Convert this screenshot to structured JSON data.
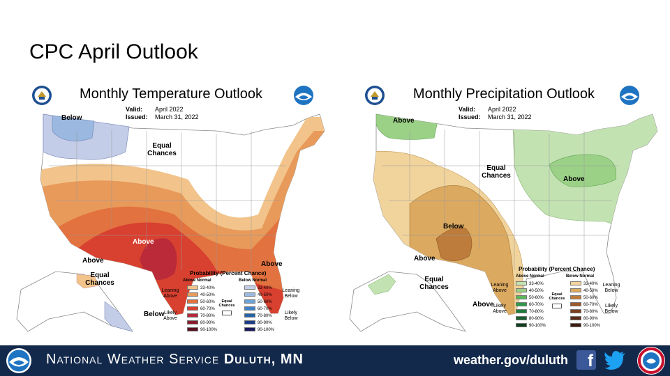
{
  "slide": {
    "title": "CPC April Outlook"
  },
  "temperature": {
    "title": "Monthly Temperature Outlook",
    "valid_label": "Valid:",
    "valid_value": "April 2022",
    "issued_label": "Issued:",
    "issued_value": "March 31, 2022",
    "labels": {
      "below_nw": "Below",
      "equal_chances": "Equal Chances",
      "above_texas": "Above",
      "above_florida": "Above",
      "above_alaska": "Above",
      "equal_chances_alaska": "Equal Chances",
      "below_alaska": "Below"
    },
    "legend": {
      "title": "Probability (Percent Chance)",
      "above_head": "Above Normal",
      "below_head": "Below Normal",
      "leaning_above": "Leaning Above",
      "likely_above": "Likely Above",
      "leaning_below": "Leaning Below",
      "likely_below": "Likely Below",
      "equal_chances": "Equal Chances",
      "above_rows": [
        {
          "range": "33-40%",
          "color": "#f2c48b"
        },
        {
          "range": "40-50%",
          "color": "#e89a5a"
        },
        {
          "range": "50-60%",
          "color": "#e2723f"
        },
        {
          "range": "60-70%",
          "color": "#d84030"
        },
        {
          "range": "70-80%",
          "color": "#b8283a"
        },
        {
          "range": "80-90%",
          "color": "#8c1a2e"
        },
        {
          "range": "90-100%",
          "color": "#5a1020"
        }
      ],
      "below_rows": [
        {
          "range": "33-40%",
          "color": "#c4cde8"
        },
        {
          "range": "40-50%",
          "color": "#9ab8e0"
        },
        {
          "range": "50-60%",
          "color": "#6aa3d8"
        },
        {
          "range": "60-70%",
          "color": "#3d82c8"
        },
        {
          "range": "70-80%",
          "color": "#2462a8"
        },
        {
          "range": "80-90%",
          "color": "#1c3c8a"
        },
        {
          "range": "90-100%",
          "color": "#1a1a5c"
        }
      ]
    }
  },
  "precipitation": {
    "title": "Monthly Precipitation Outlook",
    "valid_label": "Valid:",
    "valid_value": "April 2022",
    "issued_label": "Issued:",
    "issued_value": "March 31, 2022",
    "labels": {
      "above_nw": "Above",
      "equal_chances": "Equal Chances",
      "above_ne": "Above",
      "below_sw": "Below",
      "above_alaska": "Above",
      "equal_chances_alaska": "Equal Chances",
      "above_alaska_se": "Above"
    },
    "legend": {
      "title": "Probability (Percent Chance)",
      "above_head": "Above Normal",
      "below_head": "Below Normal",
      "leaning_above": "Leaning Above",
      "likely_above": "Likely Above",
      "leaning_below": "Leaning Below",
      "likely_below": "Likely Below",
      "equal_chances": "Equal Chances",
      "above_rows": [
        {
          "range": "33-40%",
          "color": "#c3e2b2"
        },
        {
          "range": "40-50%",
          "color": "#9bd187"
        },
        {
          "range": "50-60%",
          "color": "#5fb55c"
        },
        {
          "range": "60-70%",
          "color": "#2f9a4a"
        },
        {
          "range": "70-80%",
          "color": "#1e7d3c"
        },
        {
          "range": "80-90%",
          "color": "#175e2d"
        },
        {
          "range": "90-100%",
          "color": "#0f3f1e"
        }
      ],
      "below_rows": [
        {
          "range": "33-40%",
          "color": "#f1d39c"
        },
        {
          "range": "40-50%",
          "color": "#dba960"
        },
        {
          "range": "50-60%",
          "color": "#bd7c3c"
        },
        {
          "range": "60-70%",
          "color": "#9c5a2a"
        },
        {
          "range": "70-80%",
          "color": "#7c4020"
        },
        {
          "range": "80-90%",
          "color": "#5c2c18"
        },
        {
          "range": "90-100%",
          "color": "#3d1c10"
        }
      ]
    }
  },
  "footer": {
    "office_prefix": "National Weather Service",
    "office_city": "Duluth, MN",
    "url": "weather.gov/duluth",
    "facebook_glyph": "f"
  }
}
